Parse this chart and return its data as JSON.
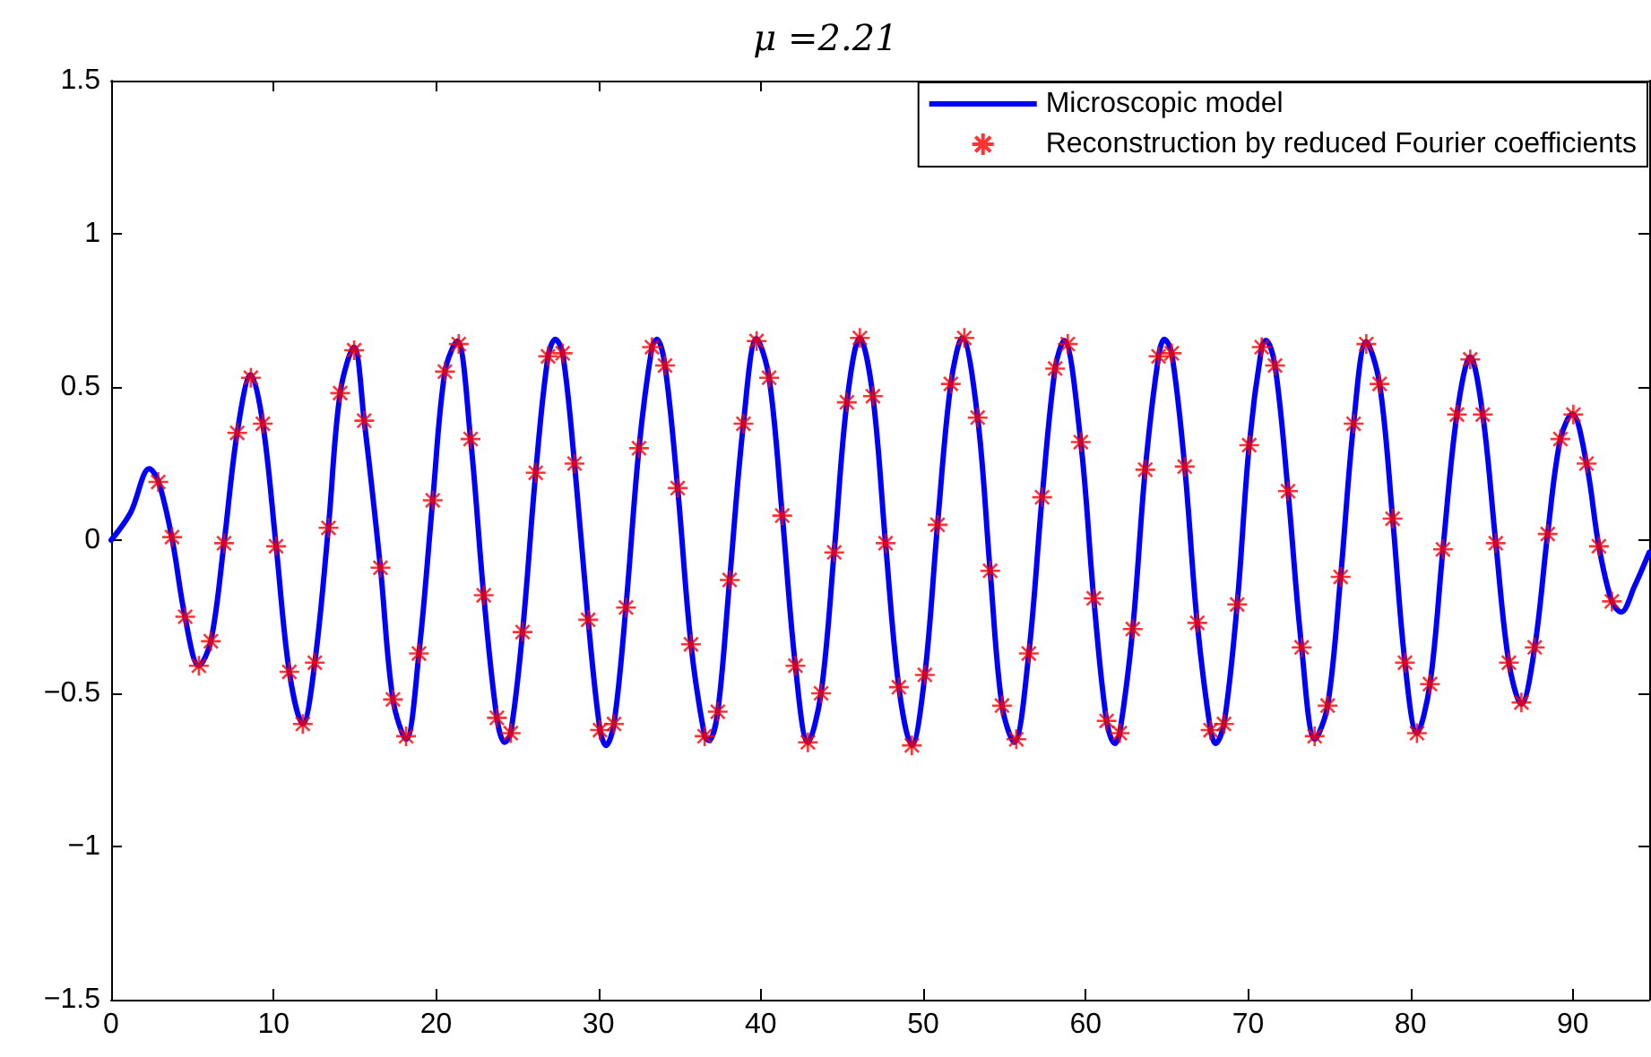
{
  "chart_data": {
    "type": "line",
    "title": "μ =2.21",
    "xlim": [
      0,
      94.7
    ],
    "xticks": [
      0,
      10,
      20,
      30,
      40,
      50,
      60,
      70,
      80,
      90
    ],
    "ylim": [
      -1.5,
      1.5
    ],
    "yticks": [
      -1.5,
      -1,
      -0.5,
      0,
      0.5,
      1,
      1.5
    ],
    "grid": false,
    "legend": "top right",
    "series": [
      {
        "name": "Microscopic model",
        "color": "#0000ff",
        "marker": "none",
        "line_style": "solid",
        "x": [
          0,
          1.2,
          2.35,
          2.9,
          3.75,
          4.56,
          5.4,
          6.14,
          6.95,
          7.76,
          8.6,
          9.34,
          10.15,
          10.97,
          11.8,
          12.54,
          13.38,
          14.1,
          14.95,
          15.58,
          16.58,
          17.35,
          18.16,
          18.95,
          19.8,
          20.55,
          21.3,
          22.13,
          22.94,
          23.75,
          24.23,
          24.6,
          25.33,
          26.14,
          26.9,
          27.35,
          27.8,
          28.53,
          29.37,
          30.1,
          30.47,
          30.96,
          31.7,
          32.5,
          33.3,
          33.6,
          34.1,
          34.88,
          35.7,
          36.54,
          36.8,
          37.35,
          38.08,
          38.93,
          39.74,
          40.51,
          41.32,
          42.13,
          42.9,
          43.71,
          44.52,
          45.3,
          46.1,
          46.9,
          47.68,
          48.5,
          49.3,
          50.1,
          50.88,
          51.7,
          52.4,
          53.35,
          54.12,
          54.85,
          55.6,
          56.5,
          57.32,
          58.12,
          58.67,
          59.7,
          60.5,
          61.29,
          61.8,
          62.1,
          62.9,
          63.67,
          64.49,
          64.85,
          65.3,
          66.1,
          66.87,
          67.69,
          68.0,
          68.52,
          69.33,
          70.07,
          70.84,
          71.1,
          71.66,
          72.46,
          73.3,
          74.12,
          74.9,
          75.7,
          76.5,
          77.28,
          78.1,
          78.9,
          79.66,
          80.4,
          81.2,
          82.0,
          82.86,
          83.68,
          84.45,
          85.25,
          86.06,
          86.83,
          87.65,
          88.45,
          89.23,
          89.96,
          90.84,
          91.6,
          92.4,
          92.97,
          93.8,
          94.7
        ],
        "values": [
          0,
          0.09,
          0.233,
          0.194,
          0.005,
          -0.254,
          -0.41,
          -0.33,
          -0.01,
          0.35,
          0.54,
          0.38,
          -0.015,
          -0.43,
          -0.6,
          -0.4,
          0.044,
          0.48,
          0.63,
          0.39,
          -0.09,
          -0.52,
          -0.65,
          -0.37,
          0.13,
          0.55,
          0.65,
          0.33,
          -0.18,
          -0.58,
          -0.66,
          -0.63,
          -0.3,
          0.22,
          0.6,
          0.656,
          0.61,
          0.25,
          -0.26,
          -0.62,
          -0.67,
          -0.6,
          -0.215,
          0.3,
          0.63,
          0.656,
          0.57,
          0.17,
          -0.34,
          -0.64,
          -0.654,
          -0.56,
          -0.13,
          0.38,
          0.658,
          0.53,
          0.083,
          -0.41,
          -0.66,
          -0.5,
          -0.036,
          0.45,
          0.66,
          0.47,
          -0.01,
          -0.48,
          -0.67,
          -0.44,
          0.05,
          0.51,
          0.66,
          0.4,
          -0.1,
          -0.54,
          -0.66,
          -0.37,
          0.14,
          0.56,
          0.652,
          0.32,
          -0.19,
          -0.59,
          -0.664,
          -0.63,
          -0.29,
          0.23,
          0.6,
          0.656,
          0.61,
          0.24,
          -0.27,
          -0.62,
          -0.664,
          -0.6,
          -0.21,
          0.31,
          0.63,
          0.652,
          0.57,
          0.16,
          -0.35,
          -0.65,
          -0.54,
          -0.12,
          0.38,
          0.648,
          0.51,
          0.073,
          -0.4,
          -0.63,
          -0.47,
          -0.03,
          0.41,
          0.598,
          0.41,
          -0.007,
          -0.4,
          -0.535,
          -0.35,
          0.022,
          0.33,
          0.412,
          0.25,
          -0.02,
          -0.2,
          -0.235,
          -0.15,
          -0.04
        ]
      },
      {
        "name": "Reconstruction by reduced Fourier coefficients",
        "type": "scatter",
        "color": "#ff0000",
        "marker": "cross",
        "x": [
          2.9,
          3.75,
          4.56,
          5.4,
          6.14,
          6.95,
          7.76,
          8.6,
          9.34,
          10.15,
          10.97,
          11.8,
          12.54,
          13.38,
          14.1,
          14.96,
          15.58,
          16.58,
          17.35,
          18.16,
          18.95,
          19.8,
          20.55,
          21.4,
          22.13,
          22.94,
          23.75,
          24.6,
          25.33,
          26.14,
          26.9,
          27.8,
          28.53,
          29.37,
          30.1,
          30.96,
          31.7,
          32.5,
          33.3,
          34.1,
          34.88,
          35.7,
          36.54,
          37.35,
          38.08,
          38.93,
          39.74,
          40.51,
          41.32,
          42.13,
          42.9,
          43.71,
          44.52,
          45.3,
          46.1,
          46.9,
          47.68,
          48.5,
          49.3,
          50.1,
          50.88,
          51.7,
          52.53,
          53.35,
          54.12,
          54.85,
          55.73,
          56.5,
          57.32,
          58.12,
          58.9,
          59.7,
          60.5,
          61.29,
          62.1,
          62.9,
          63.67,
          64.49,
          65.3,
          66.1,
          66.87,
          67.69,
          68.52,
          69.33,
          70.07,
          70.84,
          71.66,
          72.46,
          73.3,
          74.1,
          74.9,
          75.7,
          76.5,
          77.28,
          78.1,
          78.9,
          79.66,
          80.4,
          81.2,
          82.0,
          82.86,
          83.68,
          84.45,
          85.25,
          86.06,
          86.83,
          87.65,
          88.45,
          89.23,
          90.03,
          90.84,
          91.6,
          92.4
        ],
        "values": [
          0.19,
          0.01,
          -0.25,
          -0.41,
          -0.33,
          -0.01,
          0.35,
          0.53,
          0.38,
          -0.02,
          -0.43,
          -0.6,
          -0.4,
          0.04,
          0.48,
          0.62,
          0.39,
          -0.09,
          -0.52,
          -0.64,
          -0.37,
          0.13,
          0.55,
          0.64,
          0.33,
          -0.18,
          -0.58,
          -0.63,
          -0.3,
          0.22,
          0.6,
          0.61,
          0.25,
          -0.26,
          -0.62,
          -0.6,
          -0.22,
          0.3,
          0.63,
          0.57,
          0.17,
          -0.34,
          -0.64,
          -0.56,
          -0.13,
          0.38,
          0.65,
          0.53,
          0.08,
          -0.41,
          -0.66,
          -0.5,
          -0.04,
          0.45,
          0.66,
          0.47,
          -0.01,
          -0.48,
          -0.67,
          -0.44,
          0.05,
          0.51,
          0.66,
          0.4,
          -0.1,
          -0.54,
          -0.65,
          -0.37,
          0.14,
          0.56,
          0.64,
          0.32,
          -0.19,
          -0.59,
          -0.63,
          -0.29,
          0.23,
          0.6,
          0.61,
          0.24,
          -0.27,
          -0.62,
          -0.6,
          -0.21,
          0.31,
          0.63,
          0.57,
          0.16,
          -0.35,
          -0.64,
          -0.54,
          -0.12,
          0.38,
          0.64,
          0.51,
          0.07,
          -0.4,
          -0.63,
          -0.47,
          -0.03,
          0.41,
          0.59,
          0.41,
          -0.01,
          -0.4,
          -0.53,
          -0.35,
          0.02,
          0.33,
          0.41,
          0.25,
          -0.02,
          -0.2
        ]
      }
    ]
  }
}
